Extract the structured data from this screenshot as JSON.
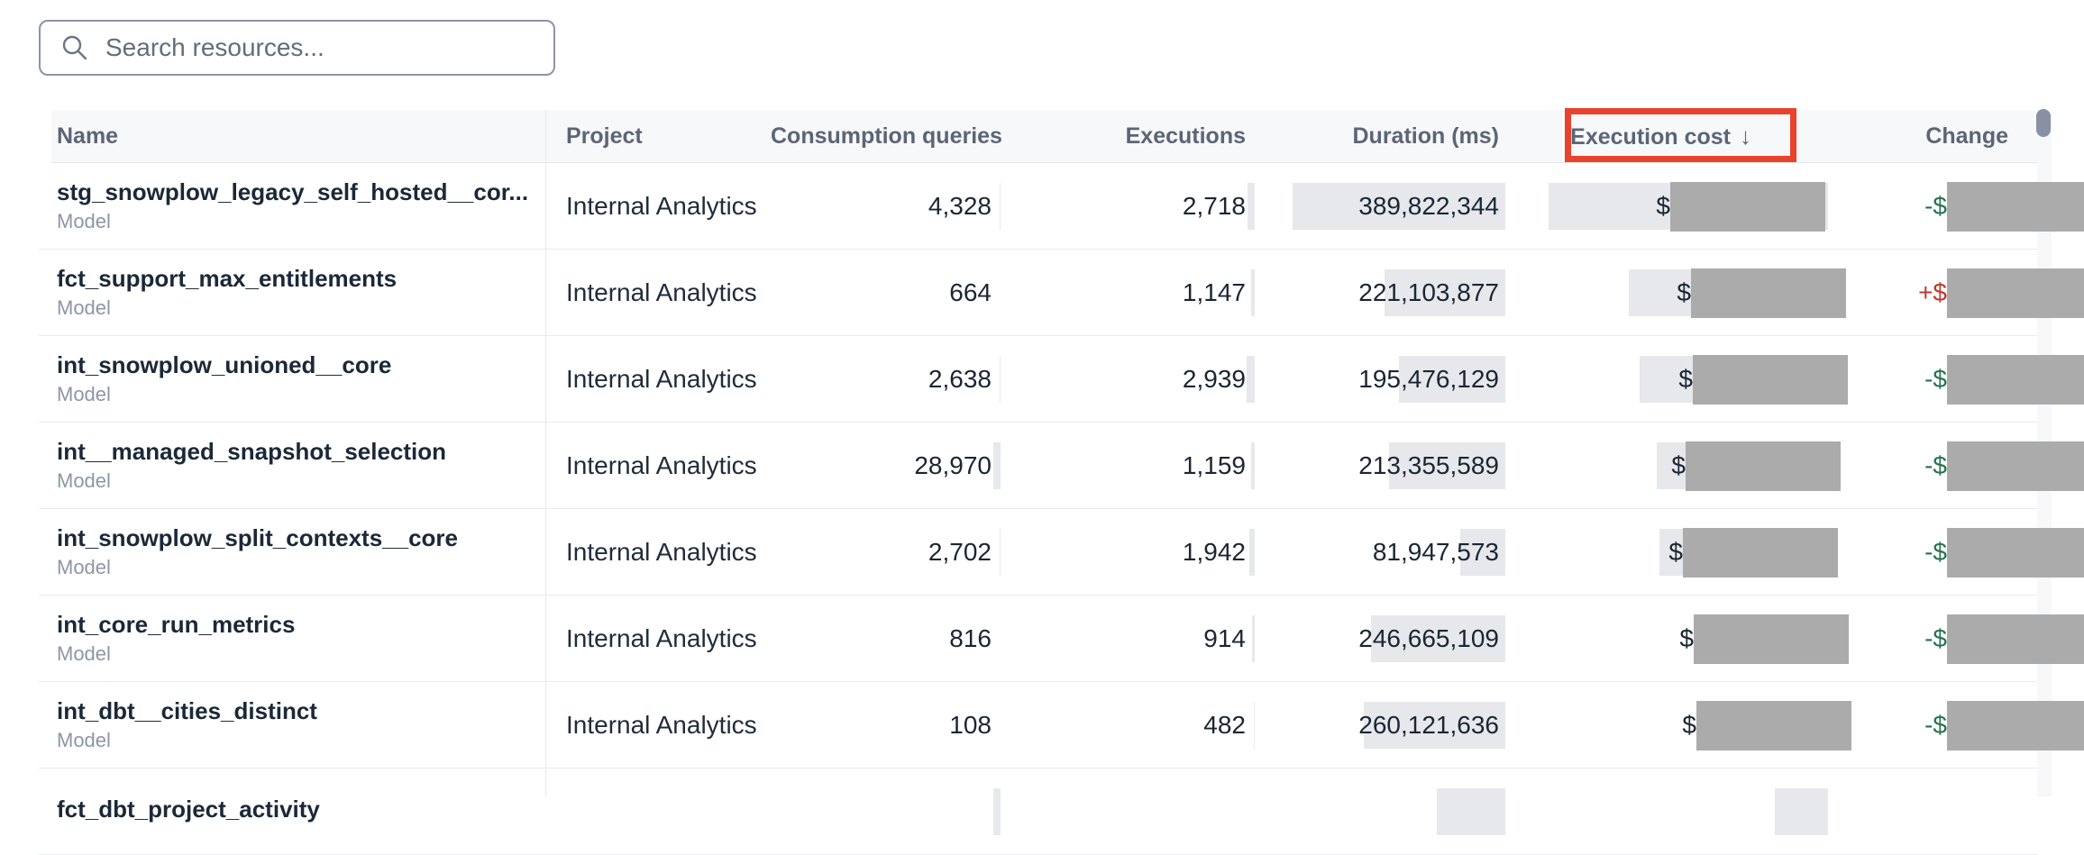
{
  "search": {
    "placeholder": "Search resources..."
  },
  "table": {
    "sort_indicator": "↓",
    "columns": [
      {
        "key": "name",
        "label": "Name",
        "align": "left"
      },
      {
        "key": "project",
        "label": "Project",
        "align": "left"
      },
      {
        "key": "consumption",
        "label": "Consumption queries",
        "align": "right"
      },
      {
        "key": "executions",
        "label": "Executions",
        "align": "right"
      },
      {
        "key": "duration",
        "label": "Duration (ms)",
        "align": "right"
      },
      {
        "key": "cost",
        "label": "Execution cost",
        "align": "right",
        "sorted": true
      },
      {
        "key": "change",
        "label": "Change",
        "align": "right"
      }
    ],
    "rows": [
      {
        "name": "stg_snowplow_legacy_self_hosted__cor...",
        "type": "Model",
        "project": "Internal Analytics",
        "consumption": "4,328",
        "executions": "2,718",
        "duration": "389,822,344",
        "cost_prefix": "$",
        "change_prefix": "-$",
        "change_direction": "negative",
        "cost_redacted": true,
        "change_redacted": true
      },
      {
        "name": "fct_support_max_entitlements",
        "type": "Model",
        "project": "Internal Analytics",
        "consumption": "664",
        "executions": "1,147",
        "duration": "221,103,877",
        "cost_prefix": "$",
        "change_prefix": "+$",
        "change_direction": "positive",
        "cost_redacted": true,
        "change_redacted": true
      },
      {
        "name": "int_snowplow_unioned__core",
        "type": "Model",
        "project": "Internal Analytics",
        "consumption": "2,638",
        "executions": "2,939",
        "duration": "195,476,129",
        "cost_prefix": "$",
        "change_prefix": "-$",
        "change_direction": "negative",
        "cost_redacted": true,
        "change_redacted": true
      },
      {
        "name": "int__managed_snapshot_selection",
        "type": "Model",
        "project": "Internal Analytics",
        "consumption": "28,970",
        "executions": "1,159",
        "duration": "213,355,589",
        "cost_prefix": "$",
        "change_prefix": "-$",
        "change_direction": "negative",
        "cost_redacted": true,
        "change_redacted": true
      },
      {
        "name": "int_snowplow_split_contexts__core",
        "type": "Model",
        "project": "Internal Analytics",
        "consumption": "2,702",
        "executions": "1,942",
        "duration": "81,947,573",
        "cost_prefix": "$",
        "change_prefix": "-$",
        "change_direction": "negative",
        "cost_redacted": true,
        "change_redacted": true
      },
      {
        "name": "int_core_run_metrics",
        "type": "Model",
        "project": "Internal Analytics",
        "consumption": "816",
        "executions": "914",
        "duration": "246,665,109",
        "cost_prefix": "$",
        "change_prefix": "-$",
        "change_direction": "negative",
        "cost_redacted": true,
        "change_redacted": true
      },
      {
        "name": "int_dbt__cities_distinct",
        "type": "Model",
        "project": "Internal Analytics",
        "consumption": "108",
        "executions": "482",
        "duration": "260,121,636",
        "cost_prefix": "$",
        "change_prefix": "-$",
        "change_direction": "negative",
        "cost_redacted": true,
        "change_redacted": true
      },
      {
        "name": "fct_dbt_project_activity",
        "type": "",
        "project": "",
        "consumption": "",
        "executions": "",
        "duration": "",
        "cost_prefix": "",
        "change_prefix": "",
        "change_direction": "none",
        "cost_redacted": false,
        "change_redacted": false
      }
    ]
  },
  "annotation": {
    "target": "execution-cost-header",
    "color": "#e8432d"
  },
  "colors": {
    "redaction_gray": "#ababab",
    "bar_gray": "#e6e8ec",
    "change_negative": "#27734f",
    "change_positive": "#bd3a2c",
    "scroll_thumb": "#8791a3"
  }
}
